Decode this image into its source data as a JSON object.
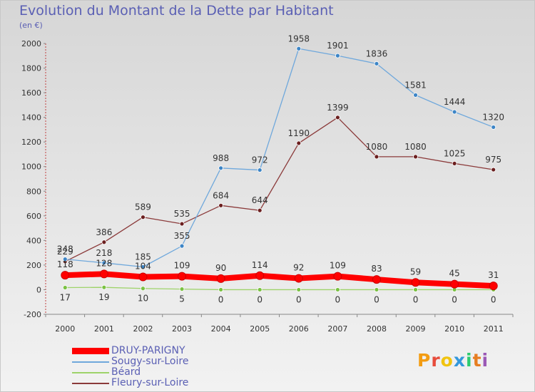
{
  "header": {
    "title": "Evolution du Montant de la Dette par Habitant",
    "subtitle": "(en €)"
  },
  "logo": {
    "text": "Proxiti",
    "colors": [
      "#f39c12",
      "#e74c3c",
      "#f1c40f",
      "#3498db",
      "#2ecc71",
      "#e67e22",
      "#9b59b6"
    ]
  },
  "chart_data": {
    "type": "line",
    "title": "Evolution du Montant de la Dette par Habitant",
    "subtitle": "(en €)",
    "x": [
      "2000",
      "2001",
      "2002",
      "2003",
      "2004",
      "2005",
      "2006",
      "2007",
      "2008",
      "2009",
      "2010",
      "2011"
    ],
    "ylim": [
      -200,
      2000
    ],
    "yticks": [
      "-200",
      "0",
      "200",
      "400",
      "600",
      "800",
      "1000",
      "1200",
      "1400",
      "1600",
      "1800",
      "2000"
    ],
    "grid": false,
    "legend_position": "bottom-left",
    "series": [
      {
        "name": "DRUY-PARIGNY",
        "color": "#ff0000",
        "emphasis": true,
        "values": [
          118,
          128,
          104,
          109,
          90,
          114,
          92,
          109,
          83,
          59,
          45,
          31
        ],
        "labels": [
          "118",
          "128",
          "104",
          "109",
          "90",
          "114",
          "92",
          "109",
          "83",
          "59",
          "45",
          "31"
        ]
      },
      {
        "name": "Sougy-sur-Loire",
        "color": "#6fa8dc",
        "marker": "#3d85c6",
        "values": [
          248,
          218,
          185,
          355,
          988,
          972,
          1958,
          1901,
          1836,
          1581,
          1444,
          1320
        ],
        "labels": [
          "248",
          "218",
          "185",
          "355",
          "988",
          "972",
          "1958",
          "1901",
          "1836",
          "1581",
          "1444",
          "1320"
        ]
      },
      {
        "name": "Béard",
        "color": "#9ed36a",
        "marker": "#7ac143",
        "values": [
          17,
          19,
          10,
          5,
          0,
          0,
          0,
          0,
          0,
          0,
          0,
          0
        ],
        "labels": [
          "17",
          "19",
          "10",
          "5",
          "0",
          "0",
          "0",
          "0",
          "0",
          "0",
          "0",
          "0"
        ]
      },
      {
        "name": "Fleury-sur-Loire",
        "color": "#8b3a3a",
        "marker": "#6b1f1f",
        "values": [
          229,
          386,
          589,
          535,
          684,
          644,
          1190,
          1399,
          1080,
          1080,
          1025,
          975
        ],
        "labels": [
          "229",
          "386",
          "589",
          "535",
          "684",
          "644",
          "1190",
          "1399",
          "1080",
          "1080",
          "1025",
          "975"
        ]
      }
    ]
  }
}
